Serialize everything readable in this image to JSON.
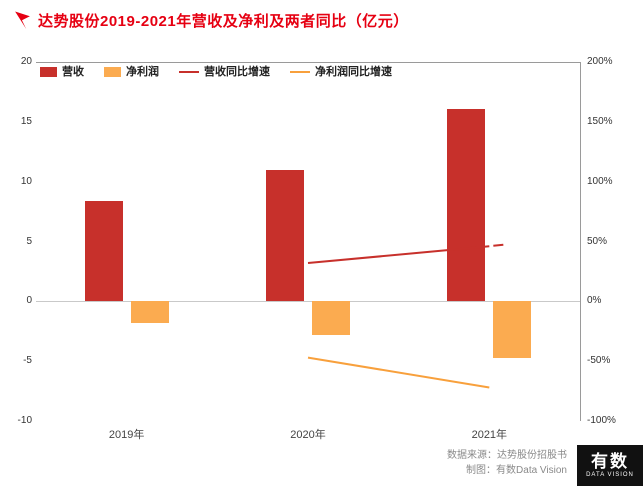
{
  "header": {
    "title": "达势股份2019-2021年营收及净利及两者同比（亿元）"
  },
  "chart_data": {
    "type": "bar+line",
    "title": "达势股份2019-2021年营收及净利及两者同比（亿元）",
    "categories": [
      "2019年",
      "2020年",
      "2021年"
    ],
    "series": [
      {
        "key": "revenue",
        "name": "营收",
        "type": "bar",
        "axis": "left",
        "color": "#c7302b",
        "values": [
          8.4,
          11.0,
          16.1
        ]
      },
      {
        "key": "net-profit",
        "name": "净利润",
        "type": "bar",
        "axis": "left",
        "color": "#fbab50",
        "values": [
          -1.8,
          -2.8,
          -4.7
        ]
      },
      {
        "key": "revenue-growth",
        "name": "营收同比增速",
        "type": "line",
        "axis": "right",
        "color": "#c7302b",
        "values": [
          null,
          32,
          46
        ],
        "end_marker": true
      },
      {
        "key": "net-profit-growth",
        "name": "净利润同比增速",
        "type": "line",
        "axis": "right",
        "color": "#f8a03c",
        "values": [
          null,
          -47,
          -72
        ],
        "end_marker": false
      }
    ],
    "left_axis": {
      "min": -10,
      "max": 20,
      "ticks": [
        20,
        15,
        10,
        5,
        0,
        -5,
        -10
      ]
    },
    "right_axis": {
      "min": -100,
      "max": 200,
      "ticks": [
        {
          "value": 200,
          "label": "200%"
        },
        {
          "value": 150,
          "label": "150%"
        },
        {
          "value": 100,
          "label": "100%"
        },
        {
          "value": 50,
          "label": "50%"
        },
        {
          "value": 0,
          "label": "0%"
        },
        {
          "value": -50,
          "label": "-50%"
        },
        {
          "value": -100,
          "label": "-100%"
        }
      ]
    },
    "grid": false,
    "legend_position": "top-left"
  },
  "footer": {
    "source": "数据来源：达势股份招股书",
    "credit": "制图：有数Data Vision",
    "logo_main": "有数",
    "logo_sub": "DATA VISION"
  }
}
